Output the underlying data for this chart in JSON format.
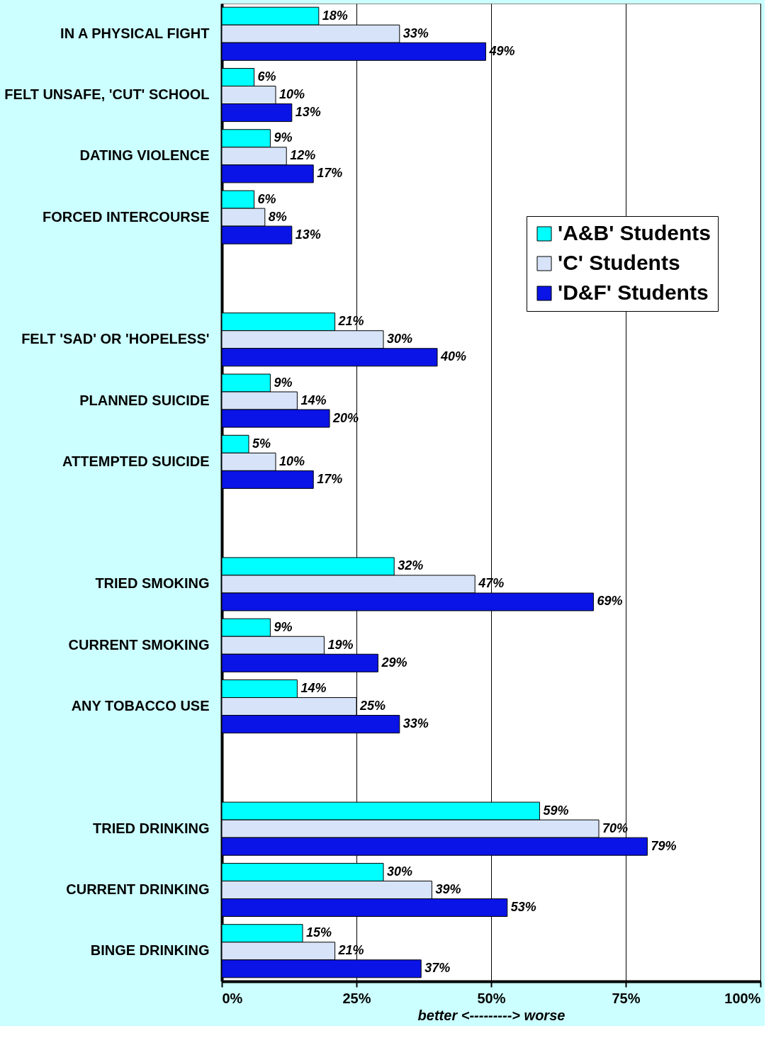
{
  "chart_data": {
    "type": "bar",
    "orientation": "horizontal",
    "xlabel": "better <---------> worse",
    "categories": [
      "IN A PHYSICAL FIGHT",
      "FELT UNSAFE, 'CUT' SCHOOL",
      "DATING VIOLENCE",
      "FORCED INTERCOURSE",
      null,
      "FELT 'SAD' OR 'HOPELESS'",
      "PLANNED SUICIDE",
      "ATTEMPTED SUICIDE",
      null,
      "TRIED SMOKING",
      "CURRENT SMOKING",
      "ANY TOBACCO USE",
      null,
      "TRIED DRINKING",
      "CURRENT DRINKING",
      "BINGE DRINKING"
    ],
    "series": [
      {
        "name": "'A&B' Students",
        "color": "#00ffff",
        "values": [
          18,
          6,
          9,
          6,
          null,
          21,
          9,
          5,
          null,
          32,
          9,
          14,
          null,
          59,
          30,
          15
        ],
        "value_labels": [
          "18%",
          "6%",
          "9%",
          "6%",
          null,
          "21%",
          "9%",
          "5%",
          null,
          "32%",
          "9%",
          "14%",
          null,
          "59%",
          "30%",
          "15%"
        ]
      },
      {
        "name": "'C' Students",
        "color": "#d6e3f8",
        "values": [
          33,
          10,
          12,
          8,
          null,
          30,
          14,
          10,
          null,
          47,
          19,
          25,
          null,
          70,
          39,
          21
        ],
        "value_labels": [
          "33%",
          "10%",
          "12%",
          "8%",
          null,
          "30%",
          "14%",
          "10%",
          null,
          "47%",
          "19%",
          "25%",
          null,
          "70%",
          "39%",
          "21%"
        ]
      },
      {
        "name": "'D&F' Students",
        "color": "#0a14e6",
        "values": [
          49,
          13,
          17,
          13,
          null,
          40,
          20,
          17,
          null,
          69,
          29,
          33,
          null,
          79,
          53,
          37
        ],
        "value_labels": [
          "49%",
          "13%",
          "17%",
          "13%",
          null,
          "40%",
          "20%",
          "17%",
          null,
          "69%",
          "29%",
          "33%",
          null,
          "79%",
          "53%",
          "37%"
        ]
      }
    ],
    "xlim": [
      0,
      100
    ],
    "xticks": [
      {
        "value": 0,
        "label": "0%"
      },
      {
        "value": 25,
        "label": "25%"
      },
      {
        "value": 50,
        "label": "50%"
      },
      {
        "value": 75,
        "label": "75%"
      },
      {
        "value": 100,
        "label": "100%"
      }
    ],
    "grid": "x",
    "legend": "right"
  }
}
